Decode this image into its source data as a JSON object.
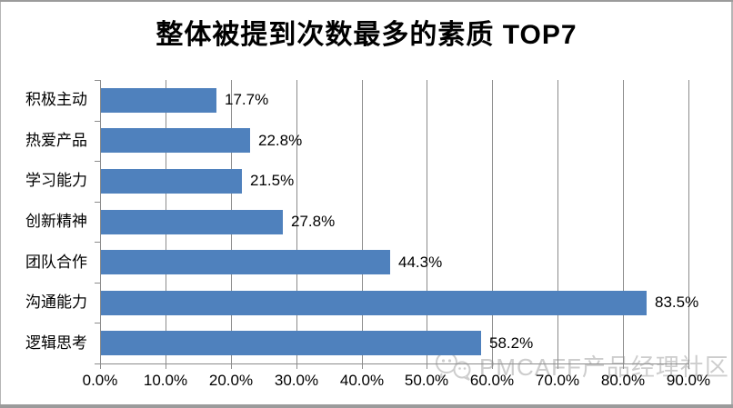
{
  "title": "整体被提到次数最多的素质 TOP7",
  "watermark": {
    "text": "PMCAFF产品经理社区",
    "color": "#cbcbcb"
  },
  "chart_data": {
    "type": "bar",
    "orientation": "horizontal",
    "title": "整体被提到次数最多的素质 TOP7",
    "categories": [
      "积极主动",
      "热爱产品",
      "学习能力",
      "创新精神",
      "团队合作",
      "沟通能力",
      "逻辑思考"
    ],
    "values": [
      17.7,
      22.8,
      21.5,
      27.8,
      44.3,
      83.5,
      58.2
    ],
    "data_labels": [
      "17.7%",
      "22.8%",
      "21.5%",
      "27.8%",
      "44.3%",
      "83.5%",
      "58.2%"
    ],
    "xlabel": "",
    "ylabel": "",
    "xlim": [
      0,
      90
    ],
    "x_ticks": [
      0,
      10,
      20,
      30,
      40,
      50,
      60,
      70,
      80,
      90
    ],
    "x_tick_labels": [
      "0.0%",
      "10.0%",
      "20.0%",
      "30.0%",
      "40.0%",
      "50.0%",
      "60.0%",
      "70.0%",
      "80.0%",
      "90.0%"
    ],
    "grid": true,
    "legend": "none",
    "bar_color": "#4F81BD",
    "gridline_color": "#8C8C8C",
    "axis_color": "#8C8C8C",
    "label_color": "#000000"
  }
}
